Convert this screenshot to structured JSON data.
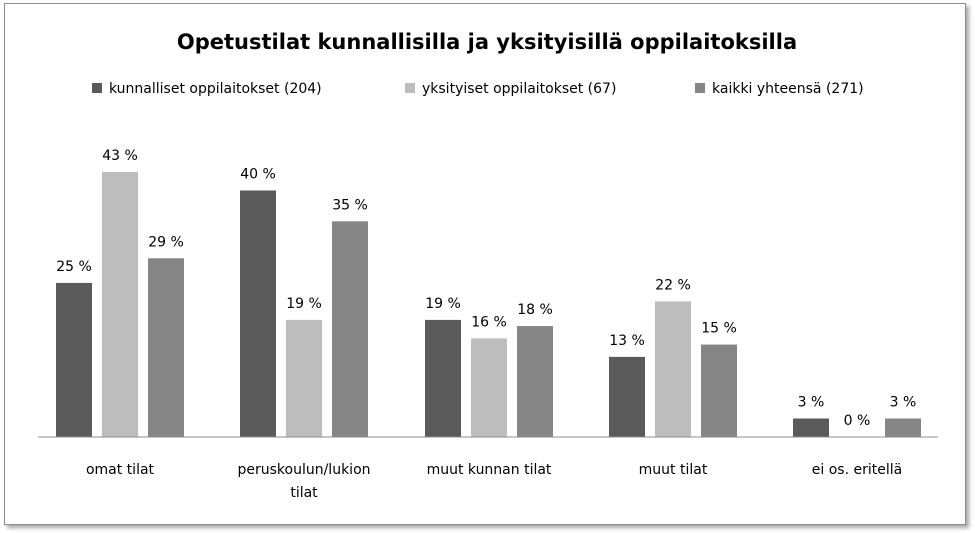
{
  "chart_data": {
    "type": "bar",
    "title": "Opetustilat kunnallisilla ja yksityisillä oppilaitoksilla",
    "categories": [
      [
        "omat tilat"
      ],
      [
        "peruskoulun/lukion",
        "tilat"
      ],
      [
        "muut kunnan tilat"
      ],
      [
        "muut tilat"
      ],
      [
        "ei os. eritellä"
      ]
    ],
    "series": [
      {
        "name": "kunnalliset oppilaitokset (204)",
        "color": "#5a5a5a",
        "values": [
          25,
          40,
          19,
          13,
          3
        ],
        "labels": [
          "25 %",
          "40 %",
          "19 %",
          "13 %",
          "3 %"
        ]
      },
      {
        "name": "yksityiset oppilaitokset (67)",
        "color": "#bdbdbd",
        "values": [
          43,
          19,
          16,
          22,
          0
        ],
        "labels": [
          "43 %",
          "19 %",
          "16 %",
          "22 %",
          "0 %"
        ]
      },
      {
        "name": "kaikki yhteensä (271)",
        "color": "#868686",
        "values": [
          29,
          35,
          18,
          15,
          3
        ],
        "labels": [
          "29 %",
          "35 %",
          "18 %",
          "15 %",
          "3 %"
        ]
      }
    ],
    "ylim": [
      0,
      44
    ],
    "grid": false,
    "legend_position": "top"
  }
}
